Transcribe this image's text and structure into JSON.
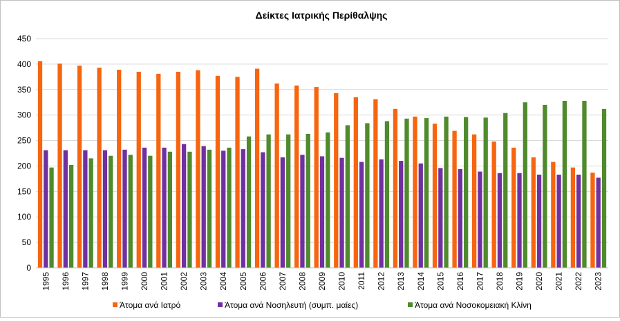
{
  "chart_data": {
    "type": "bar",
    "title": "Δείκτες Ιατρικής Περίθαλψης",
    "categories": [
      "1995",
      "1996",
      "1997",
      "1998",
      "1999",
      "2000",
      "2001",
      "2002",
      "2003",
      "2004",
      "2005",
      "2006",
      "2007",
      "2008",
      "2009",
      "2010",
      "2011",
      "2012",
      "2013",
      "2014",
      "2015",
      "2016",
      "2017",
      "2018",
      "2019",
      "2020",
      "2021",
      "2022",
      "2023"
    ],
    "series": [
      {
        "name": "Άτομα ανά Ιατρό",
        "color": "#f7650f",
        "values": [
          406,
          401,
          397,
          393,
          389,
          385,
          381,
          385,
          388,
          377,
          375,
          391,
          362,
          358,
          355,
          343,
          335,
          331,
          312,
          297,
          283,
          269,
          262,
          248,
          236,
          217,
          208,
          197,
          187
        ]
      },
      {
        "name": "Άτομα ανά Νοσηλευτή (συμπ. μαίες)",
        "color": "#7030a0",
        "values": [
          231,
          231,
          231,
          231,
          232,
          236,
          236,
          243,
          239,
          230,
          233,
          227,
          217,
          222,
          219,
          216,
          208,
          213,
          210,
          205,
          196,
          194,
          189,
          186,
          186,
          183,
          183,
          183,
          177
        ]
      },
      {
        "name": "Άτομα ανά Νοσοκομειακή Κλίνη",
        "color": "#4f8a2c",
        "values": [
          197,
          202,
          215,
          220,
          222,
          220,
          228,
          228,
          232,
          236,
          258,
          262,
          262,
          263,
          266,
          280,
          284,
          288,
          293,
          294,
          297,
          296,
          295,
          304,
          325,
          320,
          328,
          328,
          312
        ]
      }
    ],
    "ylim": [
      0,
      450
    ],
    "yticks": [
      0,
      50,
      100,
      150,
      200,
      250,
      300,
      350,
      400,
      450
    ],
    "grid": true,
    "legend": "bottom"
  }
}
